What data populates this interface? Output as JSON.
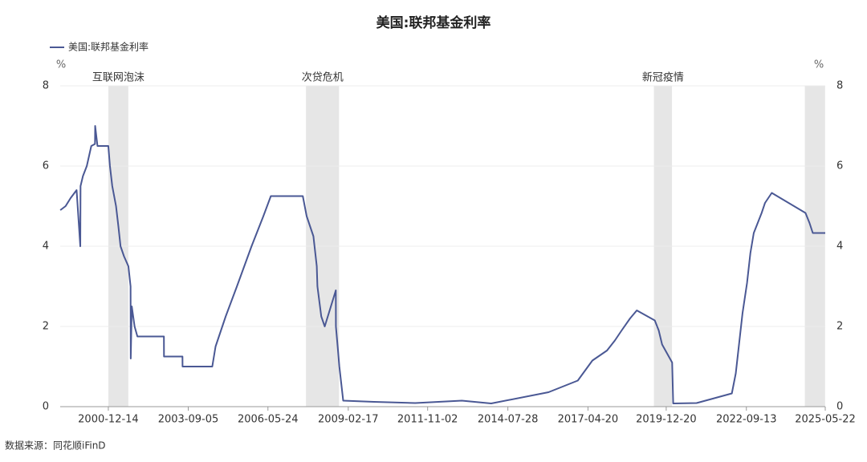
{
  "chart_data": {
    "type": "line",
    "title": "美国:联邦基金利率",
    "y_unit": "%",
    "y2_unit": "%",
    "ylim": [
      0,
      8
    ],
    "yticks": [
      0,
      2,
      4,
      6,
      8
    ],
    "y2lim": [
      0,
      8
    ],
    "y2ticks": [
      0,
      2,
      4,
      6,
      8
    ],
    "xlim": [
      "1999-04-25",
      "2025-05-22"
    ],
    "xticks": [
      "2000-12-14",
      "2003-09-05",
      "2006-05-24",
      "2009-02-17",
      "2011-11-02",
      "2014-07-28",
      "2017-04-20",
      "2019-12-20",
      "2022-09-13",
      "2025-05-22"
    ],
    "grid": true,
    "shaded_regions": [
      {
        "start": "2000-12-14",
        "end": "2001-08-20",
        "label": "互联网泡沫"
      },
      {
        "start": "2007-09-10",
        "end": "2008-10-25",
        "label": "次贷危机"
      },
      {
        "start": "2019-07-20",
        "end": "2020-03-01",
        "label": "新冠疫情"
      },
      {
        "start": "2024-09-10",
        "end": "2025-05-20"
      }
    ],
    "x": [
      "1999-04-26",
      "1999-07-01",
      "1999-09-01",
      "1999-11-15",
      "1999-12-31",
      "2000-01-03",
      "2000-02-02",
      "2000-03-21",
      "2000-05-16",
      "2000-07-01",
      "2000-07-03",
      "2000-08-01",
      "2000-12-14",
      "2001-01-03",
      "2001-02-01",
      "2001-03-20",
      "2001-04-18",
      "2001-05-15",
      "2001-06-27",
      "2001-08-21",
      "2001-09-17",
      "2001-09-19",
      "2001-10-02",
      "2001-11-06",
      "2001-12-11",
      "2002-06-01",
      "2002-11-06",
      "2002-11-07",
      "2003-06-25",
      "2003-06-26",
      "2004-06-30",
      "2004-08-10",
      "2004-12-14",
      "2005-05-03",
      "2005-11-01",
      "2006-03-28",
      "2006-06-29",
      "2007-08-01",
      "2007-09-18",
      "2007-12-11",
      "2008-01-22",
      "2008-01-30",
      "2008-03-18",
      "2008-04-30",
      "2008-09-15",
      "2008-09-16",
      "2008-10-08",
      "2008-10-29",
      "2008-12-16",
      "2010-01-01",
      "2011-06-01",
      "2013-01-01",
      "2014-01-01",
      "2015-12-16",
      "2016-12-14",
      "2017-03-15",
      "2017-06-14",
      "2017-12-13",
      "2018-03-21",
      "2018-06-13",
      "2018-09-26",
      "2018-12-19",
      "2019-07-31",
      "2019-09-18",
      "2019-10-30",
      "2020-03-03",
      "2020-03-16",
      "2021-01-01",
      "2022-03-16",
      "2022-05-04",
      "2022-06-15",
      "2022-07-27",
      "2022-09-21",
      "2022-11-02",
      "2022-12-14",
      "2023-02-01",
      "2023-03-22",
      "2023-05-03",
      "2023-07-26",
      "2024-09-18",
      "2024-11-07",
      "2024-12-18",
      "2025-05-22"
    ],
    "series": [
      {
        "name": "美国:联邦基金利率",
        "color": "#4a5894",
        "values": [
          4.9,
          5.0,
          5.2,
          5.4,
          4.0,
          5.5,
          5.75,
          6.0,
          6.5,
          6.55,
          7.0,
          6.5,
          6.5,
          6.0,
          5.5,
          5.0,
          4.5,
          4.0,
          3.75,
          3.5,
          3.0,
          1.2,
          2.5,
          2.0,
          1.75,
          1.75,
          1.75,
          1.25,
          1.25,
          1.0,
          1.0,
          1.5,
          2.25,
          3.0,
          4.0,
          4.75,
          5.25,
          5.25,
          4.75,
          4.25,
          3.5,
          3.0,
          2.25,
          2.0,
          2.9,
          2.0,
          1.5,
          1.0,
          0.15,
          0.12,
          0.09,
          0.15,
          0.08,
          0.36,
          0.65,
          0.9,
          1.15,
          1.4,
          1.65,
          1.9,
          2.2,
          2.4,
          2.15,
          1.9,
          1.55,
          1.1,
          0.08,
          0.09,
          0.33,
          0.83,
          1.58,
          2.33,
          3.08,
          3.83,
          4.33,
          4.58,
          4.83,
          5.08,
          5.33,
          4.83,
          4.58,
          4.33,
          4.33
        ]
      }
    ],
    "source": "数据来源：同花顺iFinD"
  }
}
